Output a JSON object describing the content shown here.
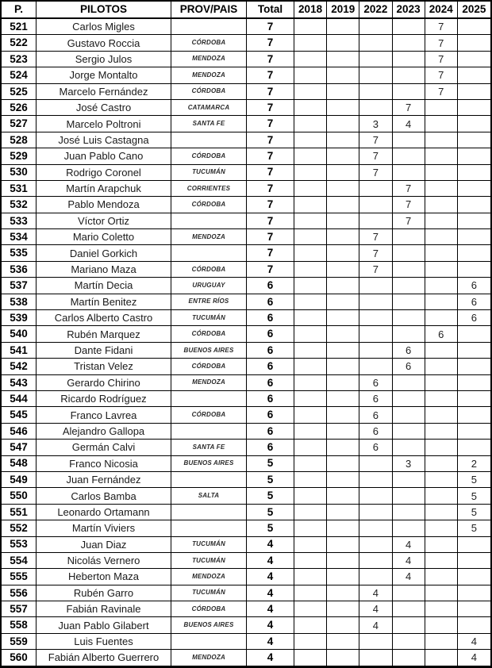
{
  "table": {
    "columns": [
      "P.",
      "PILOTOS",
      "PROV/PAIS",
      "Total",
      "2018",
      "2019",
      "2022",
      "2023",
      "2024",
      "2025"
    ],
    "rows": [
      {
        "pos": "521",
        "name": "Carlos Migles",
        "prov": "",
        "total": "7",
        "y2018": "",
        "y2019": "",
        "y2022": "",
        "y2023": "",
        "y2024": "7",
        "y2025": ""
      },
      {
        "pos": "522",
        "name": "Gustavo Roccia",
        "prov": "CÓRDOBA",
        "total": "7",
        "y2018": "",
        "y2019": "",
        "y2022": "",
        "y2023": "",
        "y2024": "7",
        "y2025": ""
      },
      {
        "pos": "523",
        "name": "Sergio Julos",
        "prov": "MENDOZA",
        "total": "7",
        "y2018": "",
        "y2019": "",
        "y2022": "",
        "y2023": "",
        "y2024": "7",
        "y2025": ""
      },
      {
        "pos": "524",
        "name": "Jorge Montalto",
        "prov": "MENDOZA",
        "total": "7",
        "y2018": "",
        "y2019": "",
        "y2022": "",
        "y2023": "",
        "y2024": "7",
        "y2025": ""
      },
      {
        "pos": "525",
        "name": "Marcelo Fernández",
        "prov": "CÓRDOBA",
        "total": "7",
        "y2018": "",
        "y2019": "",
        "y2022": "",
        "y2023": "",
        "y2024": "7",
        "y2025": ""
      },
      {
        "pos": "526",
        "name": "José Castro",
        "prov": "CATAMARCA",
        "total": "7",
        "y2018": "",
        "y2019": "",
        "y2022": "",
        "y2023": "7",
        "y2024": "",
        "y2025": ""
      },
      {
        "pos": "527",
        "name": "Marcelo Poltroni",
        "prov": "SANTA FE",
        "total": "7",
        "y2018": "",
        "y2019": "",
        "y2022": "3",
        "y2023": "4",
        "y2024": "",
        "y2025": ""
      },
      {
        "pos": "528",
        "name": "José Luis Castagna",
        "prov": "",
        "total": "7",
        "y2018": "",
        "y2019": "",
        "y2022": "7",
        "y2023": "",
        "y2024": "",
        "y2025": ""
      },
      {
        "pos": "529",
        "name": "Juan Pablo Cano",
        "prov": "CÓRDOBA",
        "total": "7",
        "y2018": "",
        "y2019": "",
        "y2022": "7",
        "y2023": "",
        "y2024": "",
        "y2025": ""
      },
      {
        "pos": "530",
        "name": "Rodrigo Coronel",
        "prov": "TUCUMÁN",
        "total": "7",
        "y2018": "",
        "y2019": "",
        "y2022": "7",
        "y2023": "",
        "y2024": "",
        "y2025": ""
      },
      {
        "pos": "531",
        "name": "Martín Arapchuk",
        "prov": "CORRIENTES",
        "total": "7",
        "y2018": "",
        "y2019": "",
        "y2022": "",
        "y2023": "7",
        "y2024": "",
        "y2025": ""
      },
      {
        "pos": "532",
        "name": "Pablo Mendoza",
        "prov": "CÓRDOBA",
        "total": "7",
        "y2018": "",
        "y2019": "",
        "y2022": "",
        "y2023": "7",
        "y2024": "",
        "y2025": ""
      },
      {
        "pos": "533",
        "name": "Víctor Ortiz",
        "prov": "",
        "total": "7",
        "y2018": "",
        "y2019": "",
        "y2022": "",
        "y2023": "7",
        "y2024": "",
        "y2025": ""
      },
      {
        "pos": "534",
        "name": "Mario Coletto",
        "prov": "MENDOZA",
        "total": "7",
        "y2018": "",
        "y2019": "",
        "y2022": "7",
        "y2023": "",
        "y2024": "",
        "y2025": ""
      },
      {
        "pos": "535",
        "name": "Daniel Gorkich",
        "prov": "",
        "total": "7",
        "y2018": "",
        "y2019": "",
        "y2022": "7",
        "y2023": "",
        "y2024": "",
        "y2025": ""
      },
      {
        "pos": "536",
        "name": "Mariano Maza",
        "prov": "CÓRDOBA",
        "total": "7",
        "y2018": "",
        "y2019": "",
        "y2022": "7",
        "y2023": "",
        "y2024": "",
        "y2025": ""
      },
      {
        "pos": "537",
        "name": "Martín Decia",
        "prov": "URUGUAY",
        "total": "6",
        "y2018": "",
        "y2019": "",
        "y2022": "",
        "y2023": "",
        "y2024": "",
        "y2025": "6"
      },
      {
        "pos": "538",
        "name": "Martín Benitez",
        "prov": "ENTRE RÍOS",
        "total": "6",
        "y2018": "",
        "y2019": "",
        "y2022": "",
        "y2023": "",
        "y2024": "",
        "y2025": "6"
      },
      {
        "pos": "539",
        "name": "Carlos Alberto Castro",
        "prov": "TUCUMÁN",
        "total": "6",
        "y2018": "",
        "y2019": "",
        "y2022": "",
        "y2023": "",
        "y2024": "",
        "y2025": "6"
      },
      {
        "pos": "540",
        "name": "Rubén Marquez",
        "prov": "CÓRDOBA",
        "total": "6",
        "y2018": "",
        "y2019": "",
        "y2022": "",
        "y2023": "",
        "y2024": "6",
        "y2025": ""
      },
      {
        "pos": "541",
        "name": "Dante Fidani",
        "prov": "BUENOS AIRES",
        "total": "6",
        "y2018": "",
        "y2019": "",
        "y2022": "",
        "y2023": "6",
        "y2024": "",
        "y2025": ""
      },
      {
        "pos": "542",
        "name": "Tristan Velez",
        "prov": "CÓRDOBA",
        "total": "6",
        "y2018": "",
        "y2019": "",
        "y2022": "",
        "y2023": "6",
        "y2024": "",
        "y2025": ""
      },
      {
        "pos": "543",
        "name": "Gerardo Chirino",
        "prov": "MENDOZA",
        "total": "6",
        "y2018": "",
        "y2019": "",
        "y2022": "6",
        "y2023": "",
        "y2024": "",
        "y2025": ""
      },
      {
        "pos": "544",
        "name": "Ricardo Rodríguez",
        "prov": "",
        "total": "6",
        "y2018": "",
        "y2019": "",
        "y2022": "6",
        "y2023": "",
        "y2024": "",
        "y2025": ""
      },
      {
        "pos": "545",
        "name": "Franco Lavrea",
        "prov": "CÓRDOBA",
        "total": "6",
        "y2018": "",
        "y2019": "",
        "y2022": "6",
        "y2023": "",
        "y2024": "",
        "y2025": ""
      },
      {
        "pos": "546",
        "name": "Alejandro Gallopa",
        "prov": "",
        "total": "6",
        "y2018": "",
        "y2019": "",
        "y2022": "6",
        "y2023": "",
        "y2024": "",
        "y2025": ""
      },
      {
        "pos": "547",
        "name": "Germán Calvi",
        "prov": "SANTA FE",
        "total": "6",
        "y2018": "",
        "y2019": "",
        "y2022": "6",
        "y2023": "",
        "y2024": "",
        "y2025": ""
      },
      {
        "pos": "548",
        "name": "Franco Nicosia",
        "prov": "BUENOS AIRES",
        "total": "5",
        "y2018": "",
        "y2019": "",
        "y2022": "",
        "y2023": "3",
        "y2024": "",
        "y2025": "2"
      },
      {
        "pos": "549",
        "name": "Juan Fernández",
        "prov": "",
        "total": "5",
        "y2018": "",
        "y2019": "",
        "y2022": "",
        "y2023": "",
        "y2024": "",
        "y2025": "5"
      },
      {
        "pos": "550",
        "name": "Carlos Bamba",
        "prov": "SALTA",
        "total": "5",
        "y2018": "",
        "y2019": "",
        "y2022": "",
        "y2023": "",
        "y2024": "",
        "y2025": "5"
      },
      {
        "pos": "551",
        "name": "Leonardo Ortamann",
        "prov": "",
        "total": "5",
        "y2018": "",
        "y2019": "",
        "y2022": "",
        "y2023": "",
        "y2024": "",
        "y2025": "5"
      },
      {
        "pos": "552",
        "name": "Martín Viviers",
        "prov": "",
        "total": "5",
        "y2018": "",
        "y2019": "",
        "y2022": "",
        "y2023": "",
        "y2024": "",
        "y2025": "5"
      },
      {
        "pos": "553",
        "name": "Juan Diaz",
        "prov": "TUCUMÁN",
        "total": "4",
        "y2018": "",
        "y2019": "",
        "y2022": "",
        "y2023": "4",
        "y2024": "",
        "y2025": ""
      },
      {
        "pos": "554",
        "name": "Nicolás Vernero",
        "prov": "TUCUMÁN",
        "total": "4",
        "y2018": "",
        "y2019": "",
        "y2022": "",
        "y2023": "4",
        "y2024": "",
        "y2025": ""
      },
      {
        "pos": "555",
        "name": "Heberton Maza",
        "prov": "MENDOZA",
        "total": "4",
        "y2018": "",
        "y2019": "",
        "y2022": "",
        "y2023": "4",
        "y2024": "",
        "y2025": ""
      },
      {
        "pos": "556",
        "name": "Rubén Garro",
        "prov": "TUCUMÁN",
        "total": "4",
        "y2018": "",
        "y2019": "",
        "y2022": "4",
        "y2023": "",
        "y2024": "",
        "y2025": ""
      },
      {
        "pos": "557",
        "name": "Fabián Ravinale",
        "prov": "CÓRDOBA",
        "total": "4",
        "y2018": "",
        "y2019": "",
        "y2022": "4",
        "y2023": "",
        "y2024": "",
        "y2025": ""
      },
      {
        "pos": "558",
        "name": "Juan Pablo Gilabert",
        "prov": "BUENOS AIRES",
        "total": "4",
        "y2018": "",
        "y2019": "",
        "y2022": "4",
        "y2023": "",
        "y2024": "",
        "y2025": ""
      },
      {
        "pos": "559",
        "name": "Luis Fuentes",
        "prov": "",
        "total": "4",
        "y2018": "",
        "y2019": "",
        "y2022": "",
        "y2023": "",
        "y2024": "",
        "y2025": "4"
      },
      {
        "pos": "560",
        "name": "Fabián Alberto Guerrero",
        "prov": "MENDOZA",
        "total": "4",
        "y2018": "",
        "y2019": "",
        "y2022": "",
        "y2023": "",
        "y2024": "",
        "y2025": "4"
      }
    ]
  },
  "colors": {
    "grid": "#000000",
    "text": "#1a1a1a",
    "background": "#ffffff"
  }
}
